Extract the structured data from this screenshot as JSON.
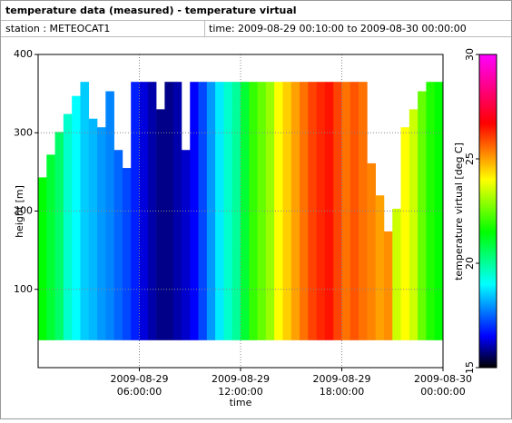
{
  "chart_data": {
    "type": "heatmap",
    "title": "temperature data (measured) - temperature virtual",
    "station": "station : METEOCAT1",
    "period": "time: 2009-08-29 00:10:00 to 2009-08-30 00:00:00",
    "xlabel": "time",
    "ylabel": "height [m]",
    "colorbar_label": "temperature virtual [deg C]",
    "x": [
      "2009-08-29 00:00",
      "2009-08-29 00:30",
      "2009-08-29 01:00",
      "2009-08-29 01:30",
      "2009-08-29 02:00",
      "2009-08-29 02:30",
      "2009-08-29 03:00",
      "2009-08-29 03:30",
      "2009-08-29 04:00",
      "2009-08-29 04:30",
      "2009-08-29 05:00",
      "2009-08-29 05:30",
      "2009-08-29 06:00",
      "2009-08-29 06:30",
      "2009-08-29 07:00",
      "2009-08-29 07:30",
      "2009-08-29 08:00",
      "2009-08-29 08:30",
      "2009-08-29 09:00",
      "2009-08-29 09:30",
      "2009-08-29 10:00",
      "2009-08-29 10:30",
      "2009-08-29 11:00",
      "2009-08-29 11:30",
      "2009-08-29 12:00",
      "2009-08-29 12:30",
      "2009-08-29 13:00",
      "2009-08-29 13:30",
      "2009-08-29 14:00",
      "2009-08-29 14:30",
      "2009-08-29 15:00",
      "2009-08-29 15:30",
      "2009-08-29 16:00",
      "2009-08-29 16:30",
      "2009-08-29 17:00",
      "2009-08-29 17:30",
      "2009-08-29 18:00",
      "2009-08-29 18:30",
      "2009-08-29 19:00",
      "2009-08-29 19:30",
      "2009-08-29 20:00",
      "2009-08-29 20:30",
      "2009-08-29 21:00",
      "2009-08-29 21:30",
      "2009-08-29 22:00",
      "2009-08-29 22:30",
      "2009-08-29 23:00",
      "2009-08-29 23:30"
    ],
    "values": [
      21.5,
      21,
      20.5,
      19.5,
      19,
      18.5,
      18.3,
      18,
      17.8,
      17.5,
      17.2,
      16.8,
      16.3,
      16,
      15.8,
      15.8,
      16,
      16.2,
      16.5,
      17.2,
      18,
      18.8,
      19.5,
      20,
      21,
      22,
      22.5,
      23,
      24,
      24.5,
      25,
      25.5,
      26,
      26.3,
      26.5,
      26,
      25.5,
      25.8,
      25.5,
      25.3,
      25,
      25.2,
      23.5,
      24,
      23.5,
      22.5,
      21.8,
      21.5
    ],
    "tops": [
      243,
      272,
      301,
      324,
      347,
      365,
      318,
      307,
      353,
      278,
      255,
      365,
      365,
      365,
      330,
      365,
      365,
      278,
      365,
      365,
      365,
      365,
      365,
      365,
      365,
      365,
      365,
      365,
      365,
      365,
      365,
      365,
      365,
      365,
      365,
      365,
      365,
      365,
      365,
      261,
      220,
      174,
      203,
      307,
      330,
      353,
      365,
      365
    ],
    "bottom": 35,
    "xlim": [
      "2009-08-29 00:00",
      "2009-08-30 00:00"
    ],
    "xticks": [
      {
        "value": "2009-08-29 06:00",
        "label": [
          "2009-08-29",
          "06:00:00"
        ]
      },
      {
        "value": "2009-08-29 12:00",
        "label": [
          "2009-08-29",
          "12:00:00"
        ]
      },
      {
        "value": "2009-08-29 18:00",
        "label": [
          "2009-08-29",
          "18:00:00"
        ]
      },
      {
        "value": "2009-08-30 00:00",
        "label": [
          "2009-08-30",
          "00:00:00"
        ]
      }
    ],
    "ylim": [
      0,
      400
    ],
    "yticks": [
      100,
      200,
      300,
      400
    ],
    "clim": [
      15,
      30
    ],
    "cticks": [
      15,
      20,
      25,
      30
    ],
    "colormap": [
      [
        15,
        "#000000"
      ],
      [
        16.5,
        "#0000ff"
      ],
      [
        19,
        "#00ffff"
      ],
      [
        21.5,
        "#00ff00"
      ],
      [
        24,
        "#ffff00"
      ],
      [
        26.7,
        "#ff0000"
      ],
      [
        30,
        "#ff00ff"
      ]
    ],
    "grid": true
  }
}
